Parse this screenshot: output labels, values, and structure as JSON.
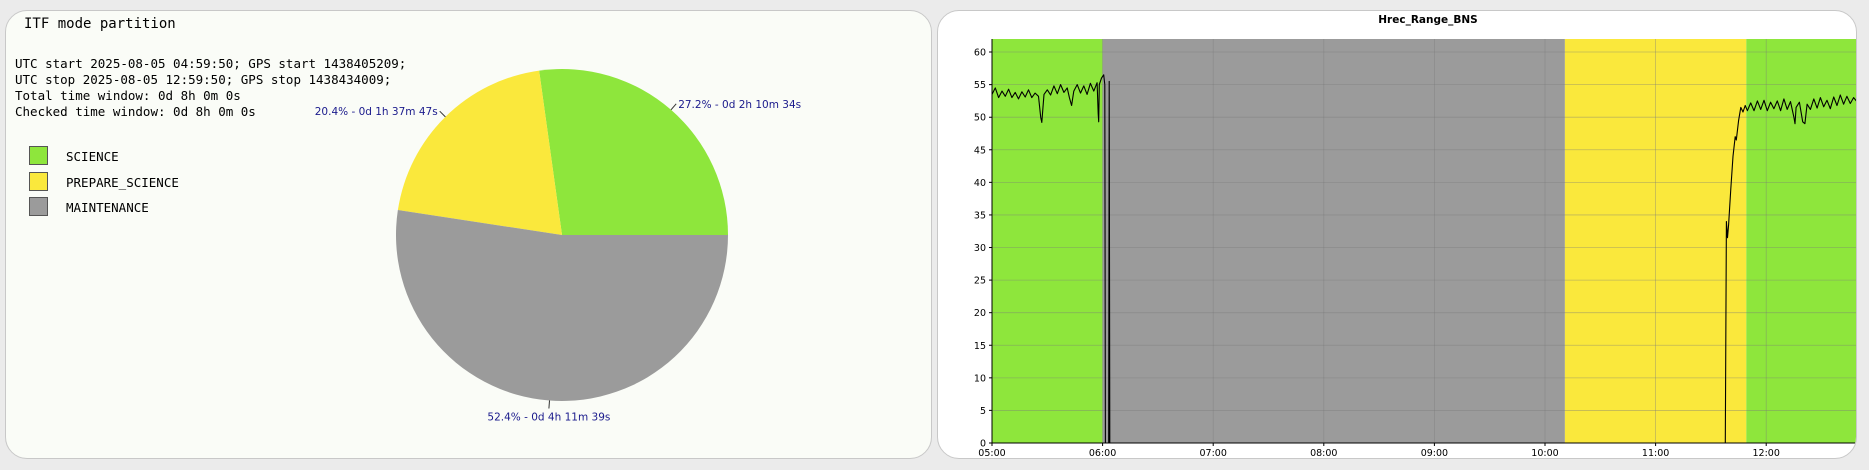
{
  "left_panel": {
    "title": "ITF mode partition",
    "info_lines": [
      "UTC start 2025-08-05 04:59:50; GPS start 1438405209;",
      "UTC stop 2025-08-05 12:59:50; GPS stop 1438434009;",
      "Total time window: 0d 8h 0m 0s",
      "Checked time window: 0d 8h 0m 0s"
    ]
  },
  "colors": {
    "SCIENCE": "#8ee63c",
    "PREPARE_SCIENCE": "#fae83c",
    "MAINTENANCE": "#9b9b9b",
    "annotation_text": "#1a1a8c"
  },
  "chart_data": [
    {
      "type": "pie",
      "slices": [
        {
          "name": "SCIENCE",
          "percent": 27.2,
          "label": "27.2% - 0d 2h 10m 34s"
        },
        {
          "name": "PREPARE_SCIENCE",
          "percent": 20.4,
          "label": "20.4% - 0d 1h 37m 47s"
        },
        {
          "name": "MAINTENANCE",
          "percent": 52.4,
          "label": "52.4% - 0d 4h 11m 39s"
        }
      ],
      "legend": [
        "SCIENCE",
        "PREPARE_SCIENCE",
        "MAINTENANCE"
      ],
      "legend_placement": "left"
    },
    {
      "type": "line",
      "title": "Hrec_Range_BNS",
      "xlabel": "",
      "ylabel": "",
      "x_tick_labels": [
        "05:00",
        "06:00",
        "07:00",
        "08:00",
        "09:00",
        "10:00",
        "11:00",
        "12:00"
      ],
      "x_ticks_hours": [
        5,
        6,
        7,
        8,
        9,
        10,
        11,
        12
      ],
      "x_range_hours": [
        5.0,
        12.83
      ],
      "y_ticks": [
        0,
        5,
        10,
        15,
        20,
        25,
        30,
        35,
        40,
        45,
        50,
        55,
        60
      ],
      "ylim": [
        0,
        62
      ],
      "grid": true,
      "mode_bands": [
        {
          "mode": "SCIENCE",
          "start": 5.0,
          "end": 6.0
        },
        {
          "mode": "MAINTENANCE",
          "start": 6.0,
          "end": 10.18
        },
        {
          "mode": "PREPARE_SCIENCE",
          "start": 10.18,
          "end": 11.82
        },
        {
          "mode": "SCIENCE",
          "start": 11.82,
          "end": 12.83
        }
      ],
      "series": [
        {
          "points": [
            [
              5.0,
              53.5
            ],
            [
              5.03,
              54.5
            ],
            [
              5.06,
              53.0
            ],
            [
              5.09,
              54.0
            ],
            [
              5.12,
              53.2
            ],
            [
              5.15,
              54.3
            ],
            [
              5.18,
              53.0
            ],
            [
              5.21,
              53.8
            ],
            [
              5.24,
              52.8
            ],
            [
              5.27,
              53.9
            ],
            [
              5.3,
              53.1
            ],
            [
              5.33,
              54.2
            ],
            [
              5.36,
              53.0
            ],
            [
              5.39,
              53.7
            ],
            [
              5.42,
              53.2
            ],
            [
              5.44,
              50.0
            ],
            [
              5.45,
              49.2
            ],
            [
              5.47,
              53.5
            ],
            [
              5.5,
              54.2
            ],
            [
              5.53,
              53.4
            ],
            [
              5.56,
              54.8
            ],
            [
              5.59,
              53.6
            ],
            [
              5.62,
              55.0
            ],
            [
              5.65,
              53.8
            ],
            [
              5.68,
              54.5
            ],
            [
              5.7,
              53.0
            ],
            [
              5.72,
              51.8
            ],
            [
              5.74,
              54.0
            ],
            [
              5.77,
              55.0
            ],
            [
              5.8,
              53.7
            ],
            [
              5.83,
              54.8
            ],
            [
              5.86,
              53.5
            ],
            [
              5.89,
              55.2
            ],
            [
              5.92,
              54.0
            ],
            [
              5.95,
              55.3
            ],
            [
              5.96,
              50.5
            ],
            [
              5.965,
              49.3
            ],
            [
              5.97,
              55.0
            ],
            [
              5.99,
              56.0
            ],
            [
              6.01,
              56.5
            ],
            [
              6.02,
              55.0
            ],
            [
              6.025,
              0.0
            ],
            [
              6.055,
              0.0
            ],
            [
              6.06,
              55.5
            ],
            [
              6.065,
              0.0
            ],
            [
              11.63,
              0.0
            ],
            [
              11.64,
              34.0
            ],
            [
              11.65,
              31.5
            ],
            [
              11.66,
              33.5
            ],
            [
              11.68,
              39.0
            ],
            [
              11.7,
              44.0
            ],
            [
              11.72,
              47.0
            ],
            [
              11.73,
              46.5
            ],
            [
              11.75,
              49.5
            ],
            [
              11.77,
              51.5
            ],
            [
              11.79,
              50.8
            ],
            [
              11.81,
              51.8
            ],
            [
              11.83,
              51.0
            ],
            [
              11.86,
              52.2
            ],
            [
              11.89,
              51.0
            ],
            [
              11.92,
              52.5
            ],
            [
              11.95,
              51.2
            ],
            [
              11.98,
              52.6
            ],
            [
              12.01,
              51.0
            ],
            [
              12.04,
              52.3
            ],
            [
              12.07,
              51.3
            ],
            [
              12.1,
              52.5
            ],
            [
              12.13,
              51.0
            ],
            [
              12.16,
              52.8
            ],
            [
              12.19,
              51.2
            ],
            [
              12.22,
              52.4
            ],
            [
              12.25,
              50.0
            ],
            [
              12.26,
              49.0
            ],
            [
              12.27,
              51.5
            ],
            [
              12.3,
              52.3
            ],
            [
              12.33,
              49.3
            ],
            [
              12.35,
              49.0
            ],
            [
              12.37,
              52.0
            ],
            [
              12.4,
              51.2
            ],
            [
              12.43,
              52.8
            ],
            [
              12.46,
              51.4
            ],
            [
              12.49,
              53.0
            ],
            [
              12.52,
              51.6
            ],
            [
              12.55,
              52.6
            ],
            [
              12.58,
              51.3
            ],
            [
              12.61,
              53.1
            ],
            [
              12.64,
              51.8
            ],
            [
              12.67,
              53.4
            ],
            [
              12.7,
              52.0
            ],
            [
              12.73,
              53.2
            ],
            [
              12.76,
              52.1
            ],
            [
              12.79,
              53.0
            ],
            [
              12.82,
              52.4
            ]
          ]
        }
      ]
    }
  ]
}
